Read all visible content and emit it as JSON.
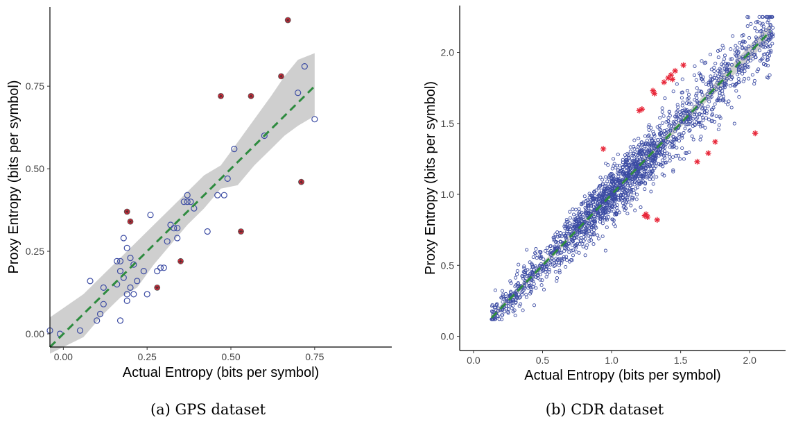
{
  "colors": {
    "regular": "#3b4ba3",
    "outlier": "#e8283a",
    "trend": "#2e8b3f",
    "band": "#cfcfcf"
  },
  "chart_data": [
    {
      "type": "scatter",
      "caption": "(a) GPS dataset",
      "xlabel": "Actual Entropy (bits per symbol)",
      "ylabel": "Proxy Entropy (bits per symbol)",
      "xlim": [
        -0.04,
        0.98
      ],
      "ylim": [
        -0.04,
        0.99
      ],
      "xticks": [
        0.0,
        0.25,
        0.5,
        0.75
      ],
      "yticks": [
        0.0,
        0.25,
        0.5,
        0.75
      ],
      "xtick_labels": [
        "0.00",
        "0.25",
        "0.50",
        "0.75"
      ],
      "ytick_labels": [
        "0.00",
        "0.25",
        "0.50",
        "0.75"
      ],
      "grid": false,
      "trend_line": {
        "x": [
          -0.04,
          0.75
        ],
        "y": [
          -0.04,
          0.75
        ]
      },
      "confidence_band": {
        "x": [
          -0.04,
          0.06,
          0.12,
          0.17,
          0.22,
          0.27,
          0.32,
          0.37,
          0.42,
          0.47,
          0.52,
          0.57,
          0.62,
          0.66,
          0.7,
          0.75
        ],
        "upper": [
          0.05,
          0.12,
          0.18,
          0.23,
          0.28,
          0.33,
          0.38,
          0.43,
          0.48,
          0.51,
          0.58,
          0.65,
          0.72,
          0.78,
          0.83,
          0.85
        ],
        "lower": [
          -0.06,
          -0.01,
          0.06,
          0.11,
          0.14,
          0.21,
          0.27,
          0.33,
          0.38,
          0.44,
          0.45,
          0.51,
          0.56,
          0.6,
          0.63,
          0.66
        ]
      },
      "series": [
        {
          "role": "regular",
          "x": [
            -0.04,
            -0.01,
            0.05,
            0.08,
            0.1,
            0.11,
            0.12,
            0.12,
            0.16,
            0.16,
            0.17,
            0.17,
            0.17,
            0.18,
            0.18,
            0.19,
            0.19,
            0.19,
            0.2,
            0.2,
            0.21,
            0.21,
            0.22,
            0.24,
            0.25,
            0.26,
            0.28,
            0.29,
            0.3,
            0.31,
            0.32,
            0.33,
            0.34,
            0.34,
            0.36,
            0.37,
            0.37,
            0.38,
            0.39,
            0.43,
            0.46,
            0.48,
            0.49,
            0.51,
            0.6,
            0.7,
            0.72,
            0.75
          ],
          "y": [
            0.01,
            0.0,
            0.01,
            0.16,
            0.04,
            0.06,
            0.09,
            0.14,
            0.15,
            0.22,
            0.04,
            0.19,
            0.22,
            0.17,
            0.29,
            0.12,
            0.1,
            0.26,
            0.23,
            0.14,
            0.21,
            0.12,
            0.16,
            0.19,
            0.12,
            0.36,
            0.19,
            0.2,
            0.2,
            0.28,
            0.33,
            0.32,
            0.29,
            0.32,
            0.4,
            0.4,
            0.42,
            0.4,
            0.38,
            0.31,
            0.42,
            0.42,
            0.47,
            0.56,
            0.6,
            0.73,
            0.81,
            0.65
          ]
        },
        {
          "role": "outlier",
          "x": [
            0.19,
            0.2,
            0.28,
            0.35,
            0.47,
            0.53,
            0.56,
            0.65,
            0.67,
            0.71
          ],
          "y": [
            0.37,
            0.34,
            0.14,
            0.22,
            0.72,
            0.31,
            0.72,
            0.78,
            0.95,
            0.46
          ]
        }
      ]
    },
    {
      "type": "scatter",
      "caption": "(b) CDR dataset",
      "xlabel": "Actual Entropy (bits per symbol)",
      "ylabel": "Proxy Entropy (bits per symbol)",
      "xlim": [
        -0.1,
        2.26
      ],
      "ylim": [
        -0.1,
        2.33
      ],
      "xticks": [
        0.0,
        0.5,
        1.0,
        1.5,
        2.0
      ],
      "yticks": [
        0.0,
        0.5,
        1.0,
        1.5,
        2.0
      ],
      "xtick_labels": [
        "0.0",
        "0.5",
        "1.0",
        "1.5",
        "2.0"
      ],
      "ytick_labels": [
        "0.0",
        "0.5",
        "1.0",
        "1.5",
        "2.0"
      ],
      "grid": false,
      "trend_line": {
        "x": [
          0.13,
          2.15
        ],
        "y": [
          0.13,
          2.15
        ]
      },
      "confidence_band": {
        "x": [
          0.13,
          0.6,
          1.1,
          1.6,
          2.0,
          2.15
        ],
        "upper": [
          0.15,
          0.62,
          1.12,
          1.63,
          2.05,
          2.2
        ],
        "lower": [
          0.11,
          0.58,
          1.08,
          1.57,
          1.95,
          2.1
        ]
      },
      "scatter_cloud": {
        "point_count": 1900,
        "x_range": [
          0.13,
          2.17
        ],
        "spread": 0.13
      },
      "series": [
        {
          "role": "outlier",
          "x": [
            0.94,
            1.2,
            1.22,
            1.24,
            1.25,
            1.26,
            1.3,
            1.31,
            1.33,
            1.38,
            1.41,
            1.43,
            1.44,
            1.46,
            1.52,
            1.62,
            1.7,
            1.75,
            2.04
          ],
          "y": [
            1.32,
            1.59,
            1.6,
            0.85,
            0.86,
            0.84,
            1.73,
            1.71,
            0.82,
            1.79,
            1.82,
            1.84,
            1.81,
            1.87,
            1.91,
            1.23,
            1.29,
            1.37,
            1.43
          ]
        }
      ]
    }
  ]
}
